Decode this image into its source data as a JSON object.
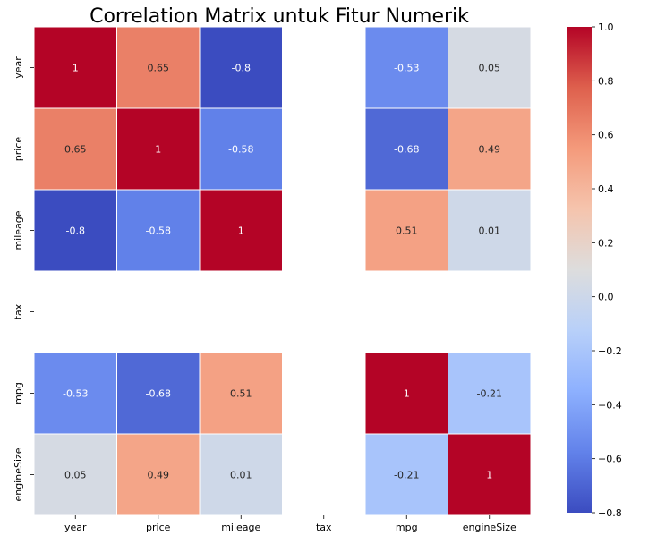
{
  "chart_data": {
    "type": "heatmap",
    "title": "Correlation Matrix untuk Fitur Numerik",
    "xlabel": "",
    "ylabel": "",
    "variables": [
      "year",
      "price",
      "mileage",
      "tax",
      "mpg",
      "engineSize"
    ],
    "matrix": [
      [
        1,
        0.65,
        -0.8,
        null,
        -0.53,
        0.05
      ],
      [
        0.65,
        1,
        -0.58,
        null,
        -0.68,
        0.49
      ],
      [
        -0.8,
        -0.58,
        1,
        null,
        0.51,
        0.01
      ],
      [
        null,
        null,
        null,
        null,
        null,
        null
      ],
      [
        -0.53,
        -0.68,
        0.51,
        null,
        1,
        -0.21
      ],
      [
        0.05,
        0.49,
        0.01,
        null,
        -0.21,
        1
      ]
    ],
    "cell_labels": [
      [
        "1",
        "0.65",
        "-0.8",
        "",
        "-0.53",
        "0.05"
      ],
      [
        "0.65",
        "1",
        "-0.58",
        "",
        "-0.68",
        "0.49"
      ],
      [
        "-0.8",
        "-0.58",
        "1",
        "",
        "0.51",
        "0.01"
      ],
      [
        "",
        "",
        "",
        "",
        "",
        ""
      ],
      [
        "-0.53",
        "-0.68",
        "0.51",
        "",
        "1",
        "-0.21"
      ],
      [
        "0.05",
        "0.49",
        "0.01",
        "",
        "-0.21",
        "1"
      ]
    ],
    "colormap": "coolwarm",
    "vmin": -0.8,
    "vmax": 1.0,
    "colorbar_ticks": [
      1.0,
      0.8,
      0.6,
      0.4,
      0.2,
      0.0,
      -0.2,
      -0.4,
      -0.6,
      -0.8
    ],
    "colorbar_tick_labels": [
      "1.0",
      "0.8",
      "0.6",
      "0.4",
      "0.2",
      "0.0",
      "−0.2",
      "−0.4",
      "−0.6",
      "−0.8"
    ],
    "colorbar_position": "right"
  }
}
